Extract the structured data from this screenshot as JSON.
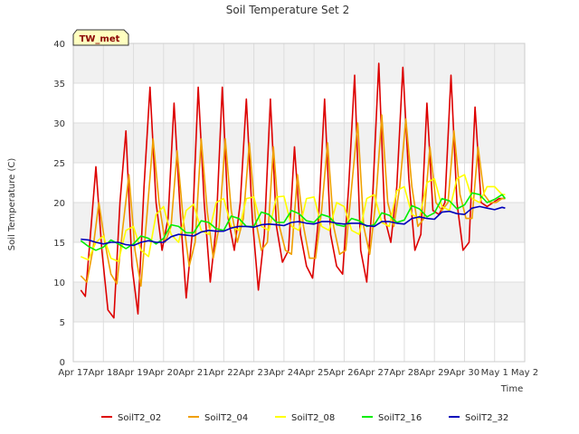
{
  "chart_data": {
    "type": "line",
    "title": "Soil Temperature Set 2",
    "xlabel": "Time",
    "ylabel": "Soil Temperature (C)",
    "tag": "TW_met",
    "x_tick_labels": [
      "Apr 17",
      "Apr 18",
      "Apr 19",
      "Apr 20",
      "Apr 21",
      "Apr 22",
      "Apr 23",
      "Apr 24",
      "Apr 25",
      "Apr 26",
      "Apr 27",
      "Apr 28",
      "Apr 29",
      "Apr 30",
      "May 1",
      "May 2"
    ],
    "y_ticks": [
      0,
      5,
      10,
      15,
      20,
      25,
      30,
      35,
      40
    ],
    "ylim": [
      0,
      40
    ],
    "xlim_days": [
      0,
      15
    ],
    "grid": true,
    "legend_position": "bottom",
    "x_unit_note": "x values are days since Apr 17 00:00",
    "series": [
      {
        "name": "SoilT2_02",
        "color": "#dd0000",
        "x": [
          0.25,
          0.4,
          0.55,
          0.75,
          0.95,
          1.15,
          1.35,
          1.55,
          1.75,
          1.95,
          2.15,
          2.35,
          2.55,
          2.75,
          2.95,
          3.15,
          3.35,
          3.55,
          3.75,
          3.95,
          4.15,
          4.35,
          4.55,
          4.75,
          4.95,
          5.15,
          5.35,
          5.55,
          5.75,
          5.95,
          6.15,
          6.35,
          6.55,
          6.75,
          6.95,
          7.15,
          7.35,
          7.55,
          7.75,
          7.95,
          8.15,
          8.35,
          8.55,
          8.75,
          8.95,
          9.15,
          9.35,
          9.55,
          9.75,
          9.95,
          10.15,
          10.35,
          10.55,
          10.75,
          10.95,
          11.15,
          11.35,
          11.55,
          11.75,
          11.95,
          12.15,
          12.35,
          12.55,
          12.75,
          12.95,
          13.15,
          13.35,
          13.55,
          13.75,
          13.95,
          14.15,
          14.35
        ],
        "values": [
          9.0,
          8.2,
          15.0,
          24.5,
          14.0,
          6.5,
          5.5,
          20.0,
          29.0,
          12.0,
          6.0,
          22.0,
          34.5,
          20.0,
          14.0,
          18.0,
          32.5,
          19.0,
          8.0,
          16.0,
          34.5,
          20.0,
          10.0,
          17.0,
          34.5,
          18.0,
          14.0,
          20.0,
          33.0,
          18.0,
          9.0,
          16.0,
          33.0,
          17.0,
          12.5,
          14.0,
          27.0,
          16.0,
          12.0,
          10.5,
          18.0,
          33.0,
          16.0,
          12.0,
          11.0,
          22.0,
          36.0,
          14.0,
          10.0,
          21.0,
          37.5,
          18.0,
          15.0,
          22.0,
          37.0,
          23.0,
          14.0,
          16.0,
          32.5,
          19.0,
          18.5,
          20.0,
          36.0,
          20.0,
          14.0,
          15.0,
          32.0,
          20.0,
          19.5,
          20.0,
          20.5,
          20.5
        ]
      },
      {
        "name": "SoilT2_04",
        "color": "#f0a000",
        "x": [
          0.25,
          0.45,
          0.65,
          0.85,
          1.05,
          1.25,
          1.45,
          1.65,
          1.85,
          2.05,
          2.25,
          2.45,
          2.65,
          2.85,
          3.05,
          3.25,
          3.45,
          3.65,
          3.85,
          4.05,
          4.25,
          4.45,
          4.65,
          4.85,
          5.05,
          5.25,
          5.45,
          5.65,
          5.85,
          6.05,
          6.25,
          6.45,
          6.65,
          6.85,
          7.05,
          7.25,
          7.45,
          7.65,
          7.85,
          8.05,
          8.25,
          8.45,
          8.65,
          8.85,
          9.05,
          9.25,
          9.45,
          9.65,
          9.85,
          10.05,
          10.25,
          10.45,
          10.65,
          10.85,
          11.05,
          11.25,
          11.45,
          11.65,
          11.85,
          12.05,
          12.25,
          12.45,
          12.65,
          12.85,
          13.05,
          13.25,
          13.45,
          13.65,
          13.85,
          14.05,
          14.25,
          14.35
        ],
        "values": [
          10.8,
          10.0,
          14.0,
          20.0,
          15.0,
          11.0,
          9.8,
          17.0,
          23.5,
          14.0,
          9.5,
          18.5,
          28.0,
          20.0,
          15.0,
          17.0,
          26.5,
          18.0,
          12.0,
          15.0,
          28.0,
          19.0,
          13.0,
          17.0,
          28.0,
          19.0,
          15.0,
          18.0,
          27.5,
          18.0,
          14.0,
          15.0,
          27.0,
          17.0,
          14.0,
          13.5,
          23.5,
          17.0,
          13.0,
          13.0,
          19.0,
          27.5,
          17.0,
          13.5,
          14.0,
          22.0,
          30.0,
          17.0,
          13.5,
          20.0,
          31.0,
          20.0,
          17.0,
          22.0,
          30.5,
          22.0,
          17.0,
          18.0,
          27.0,
          20.0,
          19.0,
          20.0,
          29.0,
          21.0,
          18.0,
          18.0,
          27.0,
          21.0,
          20.0,
          20.0,
          20.5,
          20.5
        ]
      },
      {
        "name": "SoilT2_08",
        "color": "#ffff00",
        "x": [
          0.25,
          0.5,
          0.75,
          1.0,
          1.25,
          1.5,
          1.75,
          2.0,
          2.25,
          2.5,
          2.75,
          3.0,
          3.25,
          3.5,
          3.75,
          4.0,
          4.25,
          4.5,
          4.75,
          5.0,
          5.25,
          5.5,
          5.75,
          6.0,
          6.25,
          6.5,
          6.75,
          7.0,
          7.25,
          7.5,
          7.75,
          8.0,
          8.25,
          8.5,
          8.75,
          9.0,
          9.25,
          9.5,
          9.75,
          10.0,
          10.25,
          10.5,
          10.75,
          11.0,
          11.25,
          11.5,
          11.75,
          12.0,
          12.25,
          12.5,
          12.75,
          13.0,
          13.25,
          13.5,
          13.75,
          14.0,
          14.25,
          14.35
        ],
        "values": [
          13.2,
          12.8,
          15.0,
          15.8,
          13.0,
          12.6,
          16.5,
          17.0,
          14.0,
          13.2,
          18.5,
          19.5,
          16.0,
          15.0,
          19.0,
          19.8,
          16.5,
          16.0,
          20.0,
          20.5,
          17.0,
          16.5,
          20.5,
          20.7,
          17.0,
          16.5,
          20.7,
          20.8,
          17.0,
          16.5,
          20.5,
          20.7,
          17.0,
          16.5,
          20.0,
          19.5,
          16.5,
          16.0,
          20.5,
          21.0,
          17.5,
          17.0,
          21.5,
          22.0,
          18.5,
          18.0,
          22.5,
          23.0,
          19.5,
          19.0,
          23.0,
          23.5,
          20.5,
          20.0,
          22.0,
          22.0,
          21.0,
          21.0
        ]
      },
      {
        "name": "SoilT2_16",
        "color": "#00ee00",
        "x": [
          0.25,
          0.5,
          0.75,
          1.0,
          1.25,
          1.5,
          1.75,
          2.0,
          2.25,
          2.5,
          2.75,
          3.0,
          3.25,
          3.5,
          3.75,
          4.0,
          4.25,
          4.5,
          4.75,
          5.0,
          5.25,
          5.5,
          5.75,
          6.0,
          6.25,
          6.5,
          6.75,
          7.0,
          7.25,
          7.5,
          7.75,
          8.0,
          8.25,
          8.5,
          8.75,
          9.0,
          9.25,
          9.5,
          9.75,
          10.0,
          10.25,
          10.5,
          10.75,
          11.0,
          11.25,
          11.5,
          11.75,
          12.0,
          12.25,
          12.5,
          12.75,
          13.0,
          13.25,
          13.5,
          13.75,
          14.0,
          14.25,
          14.35
        ],
        "values": [
          15.2,
          14.5,
          14.0,
          14.4,
          15.3,
          14.8,
          14.2,
          14.8,
          15.8,
          15.5,
          14.8,
          15.5,
          17.2,
          17.0,
          16.2,
          16.2,
          17.7,
          17.5,
          16.7,
          16.5,
          18.3,
          18.0,
          17.0,
          17.0,
          18.8,
          18.5,
          17.5,
          17.5,
          19.0,
          18.6,
          17.7,
          17.5,
          18.5,
          18.2,
          17.2,
          17.0,
          18.0,
          17.7,
          17.0,
          17.2,
          18.7,
          18.4,
          17.5,
          17.8,
          19.6,
          19.2,
          18.2,
          18.7,
          20.5,
          20.2,
          19.2,
          19.7,
          21.2,
          21.0,
          20.0,
          20.4,
          21.0,
          20.5
        ]
      },
      {
        "name": "SoilT2_32",
        "color": "#0000bb",
        "x": [
          0.25,
          0.5,
          0.75,
          1.0,
          1.25,
          1.5,
          1.75,
          2.0,
          2.25,
          2.5,
          2.75,
          3.0,
          3.25,
          3.5,
          3.75,
          4.0,
          4.25,
          4.5,
          4.75,
          5.0,
          5.25,
          5.5,
          5.75,
          6.0,
          6.25,
          6.5,
          6.75,
          7.0,
          7.25,
          7.5,
          7.75,
          8.0,
          8.25,
          8.5,
          8.75,
          9.0,
          9.25,
          9.5,
          9.75,
          10.0,
          10.25,
          10.5,
          10.75,
          11.0,
          11.25,
          11.5,
          11.75,
          12.0,
          12.25,
          12.5,
          12.75,
          13.0,
          13.25,
          13.5,
          13.75,
          14.0,
          14.25,
          14.35
        ],
        "values": [
          15.4,
          15.3,
          15.0,
          14.8,
          15.0,
          15.0,
          14.7,
          14.6,
          15.0,
          15.2,
          15.0,
          15.0,
          15.7,
          16.0,
          15.9,
          15.8,
          16.3,
          16.5,
          16.4,
          16.4,
          16.8,
          17.0,
          17.0,
          16.9,
          17.2,
          17.3,
          17.2,
          17.1,
          17.5,
          17.6,
          17.4,
          17.3,
          17.6,
          17.6,
          17.4,
          17.3,
          17.4,
          17.4,
          17.1,
          17.0,
          17.6,
          17.6,
          17.4,
          17.3,
          18.0,
          18.2,
          18.0,
          17.9,
          18.8,
          18.9,
          18.6,
          18.5,
          19.3,
          19.5,
          19.3,
          19.1,
          19.4,
          19.3
        ]
      }
    ]
  }
}
